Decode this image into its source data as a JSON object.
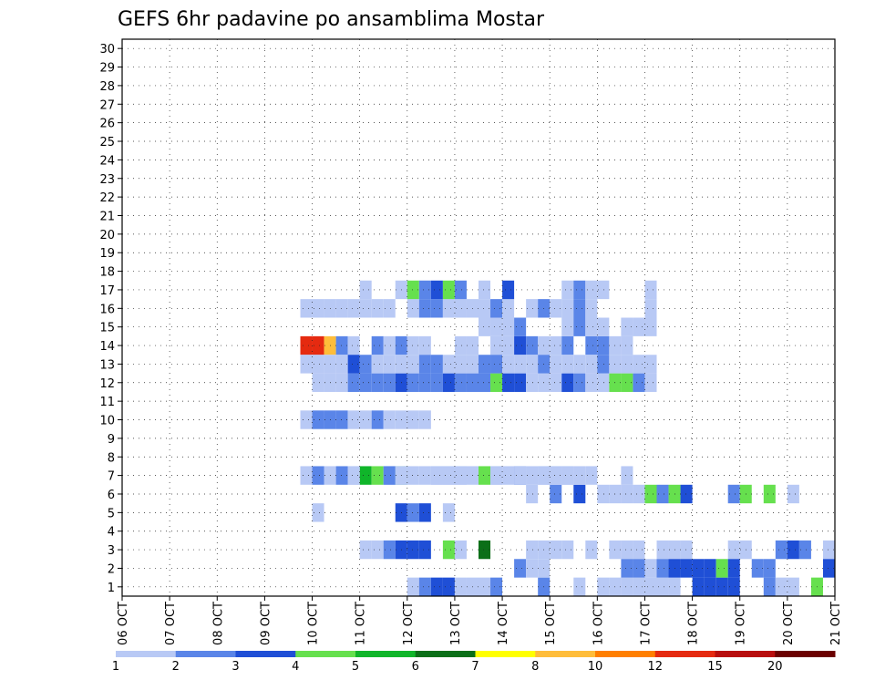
{
  "title": "GEFS 6hr padavine po ansamblima Mostar",
  "chart_data": {
    "type": "heatmap",
    "title": "GEFS 6hr padavine po ansamblima Mostar",
    "y_ticks": [
      "1",
      "2",
      "3",
      "4",
      "5",
      "6",
      "7",
      "8",
      "9",
      "10",
      "11",
      "12",
      "13",
      "14",
      "15",
      "16",
      "17",
      "18",
      "19",
      "20",
      "21",
      "22",
      "23",
      "24",
      "25",
      "26",
      "27",
      "28",
      "29",
      "30"
    ],
    "x_ticks": [
      "06 OCT",
      "07 OCT",
      "08 OCT",
      "09 OCT",
      "10 OCT",
      "11 OCT",
      "12 OCT",
      "13 OCT",
      "14 OCT",
      "15 OCT",
      "16 OCT",
      "17 OCT",
      "18 OCT",
      "19 OCT",
      "20 OCT",
      "21 OCT"
    ],
    "grid": true,
    "legend": {
      "placement": "bottom",
      "colors": [
        "#b8c9f5",
        "#5a85e8",
        "#1f4fd6",
        "#66e04e",
        "#10b52a",
        "#0b6f18",
        "#ffff00",
        "#ffbd3a",
        "#ff7f00",
        "#e52a10",
        "#b80e0e",
        "#6b0000"
      ],
      "labels": [
        "1",
        "2",
        "3",
        "4",
        "5",
        "6",
        "7",
        "8",
        "10",
        "12",
        "15",
        "20"
      ]
    },
    "cells": [
      [
        3,
        6,
        1
      ],
      [
        3,
        7,
        1
      ],
      [
        3,
        8,
        2
      ],
      [
        3,
        9,
        3
      ],
      [
        3,
        10,
        3
      ],
      [
        3,
        11,
        3
      ],
      [
        3,
        13,
        4
      ],
      [
        3,
        14,
        1
      ],
      [
        3,
        16,
        6
      ],
      [
        3,
        20,
        1
      ],
      [
        3,
        21,
        1
      ],
      [
        3,
        22,
        1
      ],
      [
        3,
        23,
        1
      ],
      [
        3,
        25,
        1
      ],
      [
        3,
        27,
        1
      ],
      [
        3,
        28,
        1
      ],
      [
        3,
        29,
        1
      ],
      [
        3,
        31,
        1
      ],
      [
        3,
        32,
        1
      ],
      [
        3,
        33,
        1
      ],
      [
        3,
        37,
        1
      ],
      [
        3,
        38,
        1
      ],
      [
        3,
        41,
        2
      ],
      [
        3,
        42,
        3
      ],
      [
        3,
        43,
        2
      ],
      [
        3,
        45,
        1
      ],
      [
        3,
        48,
        2
      ],
      [
        3,
        49,
        1
      ],
      [
        3,
        50,
        3
      ],
      [
        3,
        51,
        1
      ],
      [
        3,
        52,
        1
      ],
      [
        3,
        53,
        1
      ],
      [
        3,
        54,
        1
      ],
      [
        3,
        55,
        2
      ],
      [
        3,
        56,
        1
      ],
      [
        3,
        58,
        5
      ],
      [
        3,
        60,
        2
      ],
      [
        1,
        10,
        1
      ],
      [
        1,
        11,
        2
      ],
      [
        1,
        12,
        3
      ],
      [
        1,
        13,
        3
      ],
      [
        1,
        14,
        1
      ],
      [
        1,
        15,
        1
      ],
      [
        1,
        16,
        1
      ],
      [
        1,
        17,
        2
      ],
      [
        1,
        21,
        2
      ],
      [
        1,
        24,
        1
      ],
      [
        1,
        26,
        1
      ],
      [
        1,
        27,
        1
      ],
      [
        1,
        28,
        1
      ],
      [
        1,
        29,
        1
      ],
      [
        1,
        30,
        1
      ],
      [
        1,
        31,
        1
      ],
      [
        1,
        32,
        1
      ],
      [
        1,
        34,
        3
      ],
      [
        1,
        35,
        3
      ],
      [
        1,
        36,
        3
      ],
      [
        1,
        37,
        3
      ],
      [
        1,
        40,
        2
      ],
      [
        1,
        41,
        1
      ],
      [
        1,
        42,
        1
      ],
      [
        1,
        44,
        4
      ],
      [
        1,
        46,
        3
      ],
      [
        1,
        47,
        3
      ],
      [
        1,
        48,
        3
      ],
      [
        2,
        19,
        2
      ],
      [
        2,
        20,
        1
      ],
      [
        2,
        21,
        1
      ],
      [
        2,
        28,
        2
      ],
      [
        2,
        29,
        2
      ],
      [
        2,
        30,
        1
      ],
      [
        2,
        31,
        2
      ],
      [
        2,
        32,
        3
      ],
      [
        2,
        33,
        3
      ],
      [
        2,
        34,
        3
      ],
      [
        2,
        35,
        3
      ],
      [
        2,
        36,
        4
      ],
      [
        2,
        37,
        3
      ],
      [
        2,
        39,
        2
      ],
      [
        2,
        40,
        2
      ],
      [
        2,
        45,
        3
      ],
      [
        2,
        46,
        1
      ],
      [
        2,
        47,
        2
      ],
      [
        2,
        52,
        1
      ],
      [
        2,
        53,
        1
      ],
      [
        6,
        20,
        1
      ],
      [
        6,
        22,
        2
      ],
      [
        6,
        24,
        3
      ],
      [
        6,
        26,
        1
      ],
      [
        6,
        27,
        1
      ],
      [
        6,
        28,
        1
      ],
      [
        6,
        29,
        1
      ],
      [
        6,
        30,
        4
      ],
      [
        6,
        31,
        2
      ],
      [
        6,
        32,
        4
      ],
      [
        6,
        33,
        3
      ],
      [
        6,
        37,
        2
      ],
      [
        6,
        38,
        4
      ],
      [
        6,
        40,
        4
      ],
      [
        6,
        42,
        1
      ],
      [
        6,
        46,
        1
      ],
      [
        7,
        6,
        5
      ],
      [
        7,
        7,
        4
      ],
      [
        7,
        8,
        1
      ],
      [
        7,
        9,
        4
      ],
      [
        7,
        10,
        1
      ],
      [
        7,
        11,
        1
      ],
      [
        7,
        12,
        1
      ],
      [
        7,
        13,
        1
      ],
      [
        7,
        14,
        1
      ],
      [
        7,
        15,
        1
      ],
      [
        7,
        16,
        4
      ],
      [
        7,
        17,
        1
      ],
      [
        7,
        19,
        2
      ],
      [
        7,
        21,
        1
      ],
      [
        7,
        22,
        1
      ],
      [
        7,
        23,
        1
      ],
      [
        7,
        24,
        1
      ],
      [
        5,
        2,
        1
      ],
      [
        5,
        9,
        3
      ],
      [
        5,
        10,
        2
      ],
      [
        5,
        11,
        3
      ],
      [
        5,
        13,
        1
      ],
      [
        7,
        3,
        1
      ],
      [
        7,
        5,
        1
      ],
      [
        7,
        9,
        1
      ],
      [
        7,
        12,
        1
      ],
      [
        7,
        1,
        1
      ],
      [
        7,
        2,
        2
      ],
      [
        7,
        4,
        2
      ],
      [
        7,
        5,
        1
      ],
      [
        7,
        8,
        2
      ],
      [
        7,
        9,
        1
      ],
      [
        7,
        13,
        1
      ],
      [
        7,
        14,
        1
      ],
      [
        7,
        17,
        1
      ],
      [
        7,
        18,
        1
      ],
      [
        7,
        19,
        1
      ],
      [
        7,
        20,
        1
      ],
      [
        7,
        21,
        1
      ],
      [
        7,
        22,
        1
      ],
      [
        7,
        23,
        1
      ],
      [
        7,
        25,
        1
      ],
      [
        7,
        28,
        1
      ],
      [
        10,
        1,
        1
      ],
      [
        10,
        2,
        2
      ],
      [
        10,
        3,
        2
      ],
      [
        10,
        4,
        2
      ],
      [
        10,
        5,
        1
      ],
      [
        10,
        6,
        1
      ],
      [
        10,
        7,
        2
      ],
      [
        10,
        8,
        1
      ],
      [
        10,
        9,
        1
      ],
      [
        10,
        10,
        1
      ],
      [
        10,
        11,
        1
      ],
      [
        12,
        2,
        1
      ],
      [
        12,
        3,
        1
      ],
      [
        12,
        4,
        1
      ],
      [
        12,
        5,
        2
      ],
      [
        12,
        6,
        2
      ],
      [
        12,
        7,
        2
      ],
      [
        12,
        8,
        2
      ],
      [
        12,
        9,
        3
      ],
      [
        12,
        10,
        2
      ],
      [
        12,
        11,
        2
      ],
      [
        12,
        12,
        2
      ],
      [
        12,
        13,
        3
      ],
      [
        12,
        14,
        2
      ],
      [
        12,
        15,
        2
      ],
      [
        12,
        16,
        2
      ],
      [
        12,
        17,
        4
      ],
      [
        12,
        18,
        3
      ],
      [
        12,
        19,
        3
      ],
      [
        12,
        20,
        1
      ],
      [
        12,
        21,
        1
      ],
      [
        12,
        22,
        1
      ],
      [
        12,
        23,
        3
      ],
      [
        12,
        24,
        2
      ],
      [
        12,
        25,
        1
      ],
      [
        12,
        26,
        1
      ],
      [
        12,
        27,
        4
      ],
      [
        12,
        28,
        4
      ],
      [
        12,
        29,
        2
      ],
      [
        12,
        30,
        1
      ],
      [
        14,
        1,
        10
      ],
      [
        14,
        2,
        10
      ],
      [
        14,
        3,
        8
      ],
      [
        14,
        4,
        2
      ],
      [
        14,
        5,
        1
      ],
      [
        14,
        7,
        2
      ],
      [
        14,
        8,
        1
      ],
      [
        14,
        9,
        2
      ],
      [
        14,
        10,
        1
      ],
      [
        14,
        11,
        1
      ],
      [
        14,
        14,
        1
      ],
      [
        14,
        15,
        1
      ],
      [
        14,
        17,
        1
      ],
      [
        14,
        18,
        1
      ],
      [
        14,
        19,
        3
      ],
      [
        14,
        20,
        2
      ],
      [
        14,
        21,
        1
      ],
      [
        14,
        22,
        1
      ],
      [
        14,
        23,
        2
      ],
      [
        14,
        25,
        2
      ],
      [
        14,
        26,
        2
      ],
      [
        14,
        27,
        1
      ],
      [
        14,
        28,
        1
      ],
      [
        15,
        16,
        1
      ],
      [
        15,
        17,
        1
      ],
      [
        15,
        18,
        1
      ],
      [
        15,
        19,
        2
      ],
      [
        15,
        23,
        1
      ],
      [
        15,
        24,
        2
      ],
      [
        15,
        25,
        1
      ],
      [
        15,
        26,
        1
      ],
      [
        15,
        28,
        1
      ],
      [
        15,
        29,
        1
      ],
      [
        15,
        30,
        1
      ],
      [
        16,
        1,
        1
      ],
      [
        16,
        2,
        1
      ],
      [
        16,
        3,
        1
      ],
      [
        16,
        4,
        1
      ],
      [
        16,
        5,
        1
      ],
      [
        16,
        6,
        1
      ],
      [
        16,
        7,
        1
      ],
      [
        16,
        8,
        1
      ],
      [
        16,
        10,
        1
      ],
      [
        16,
        11,
        2
      ],
      [
        16,
        12,
        2
      ],
      [
        16,
        13,
        1
      ],
      [
        16,
        14,
        1
      ],
      [
        16,
        15,
        1
      ],
      [
        16,
        16,
        1
      ],
      [
        16,
        17,
        2
      ],
      [
        16,
        18,
        1
      ],
      [
        16,
        20,
        1
      ],
      [
        16,
        21,
        2
      ],
      [
        16,
        22,
        1
      ],
      [
        16,
        23,
        1
      ],
      [
        16,
        24,
        2
      ],
      [
        16,
        25,
        1
      ],
      [
        16,
        30,
        1
      ],
      [
        17,
        6,
        1
      ],
      [
        17,
        9,
        1
      ],
      [
        17,
        10,
        4
      ],
      [
        17,
        11,
        2
      ],
      [
        17,
        12,
        3
      ],
      [
        17,
        13,
        4
      ],
      [
        17,
        14,
        2
      ],
      [
        17,
        16,
        1
      ],
      [
        17,
        18,
        3
      ],
      [
        17,
        23,
        1
      ],
      [
        17,
        24,
        2
      ],
      [
        17,
        25,
        1
      ],
      [
        17,
        26,
        1
      ],
      [
        17,
        30,
        1
      ],
      [
        13,
        1,
        1
      ],
      [
        13,
        2,
        1
      ],
      [
        13,
        3,
        1
      ],
      [
        13,
        4,
        1
      ],
      [
        13,
        5,
        3
      ],
      [
        13,
        6,
        2
      ],
      [
        13,
        7,
        1
      ],
      [
        13,
        8,
        1
      ],
      [
        13,
        9,
        1
      ],
      [
        13,
        10,
        1
      ],
      [
        13,
        11,
        2
      ],
      [
        13,
        12,
        2
      ],
      [
        13,
        13,
        1
      ],
      [
        13,
        14,
        1
      ],
      [
        13,
        15,
        1
      ],
      [
        13,
        16,
        2
      ],
      [
        13,
        17,
        2
      ],
      [
        13,
        18,
        1
      ],
      [
        13,
        19,
        1
      ],
      [
        13,
        20,
        1
      ],
      [
        13,
        21,
        2
      ],
      [
        13,
        22,
        1
      ],
      [
        13,
        23,
        1
      ],
      [
        13,
        24,
        1
      ],
      [
        13,
        25,
        1
      ],
      [
        13,
        26,
        2
      ],
      [
        13,
        27,
        1
      ],
      [
        13,
        28,
        1
      ],
      [
        13,
        29,
        1
      ],
      [
        13,
        30,
        1
      ]
    ]
  }
}
